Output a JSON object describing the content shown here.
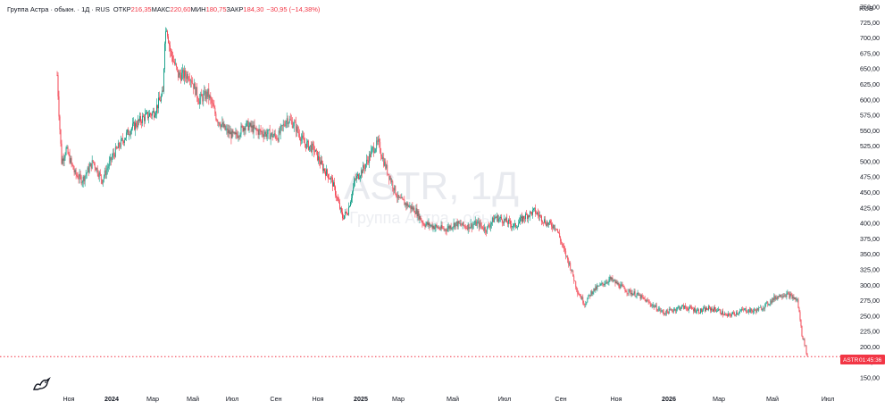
{
  "header": {
    "symbol": "Группа Астра · обыкн. · 1Д · RUS",
    "open_label": "ОТКР",
    "open_value": "216,35",
    "high_label": "МАКС",
    "high_value": "220,60",
    "low_label": "МИН",
    "low_value": "180,75",
    "close_label": "ЗАКР",
    "close_value": "184,30",
    "change": "−30,95 (−14,38%)"
  },
  "watermark": {
    "ticker": "ASTR, 1Д",
    "name": "Группа Астра · обыкн."
  },
  "price_tag": {
    "ticker": "ASTR",
    "timer": "01:45:36"
  },
  "colors": {
    "up": "#089981",
    "down": "#f23645",
    "grid": "#f0f3fa"
  },
  "chart_data": {
    "type": "candlestick",
    "currency": "RUB",
    "y_ticks": [
      750,
      725,
      700,
      675,
      650,
      625,
      600,
      575,
      550,
      525,
      500,
      475,
      450,
      425,
      400,
      375,
      350,
      325,
      300,
      275,
      250,
      225,
      200,
      175,
      150
    ],
    "y_tick_labels": [
      "750,00",
      "725,00",
      "700,00",
      "675,00",
      "650,00",
      "625,00",
      "600,00",
      "575,00",
      "550,00",
      "525,00",
      "500,00",
      "475,00",
      "450,00",
      "425,00",
      "400,00",
      "375,00",
      "350,00",
      "325,00",
      "300,00",
      "275,00",
      "250,00",
      "225,00",
      "200,00",
      "175,00",
      "150,00"
    ],
    "ylim": [
      140,
      765
    ],
    "x_ticks": [
      "Ноя",
      "2024",
      "Мар",
      "Май",
      "Июл",
      "Сен",
      "Ноя",
      "2025",
      "Мар",
      "Май",
      "Июл",
      "Сен",
      "Ноя",
      "2026",
      "Мар",
      "Май",
      "Июл"
    ],
    "x_tick_bold": [
      false,
      true,
      false,
      false,
      false,
      false,
      false,
      true,
      false,
      false,
      false,
      false,
      false,
      true,
      false,
      false,
      false
    ],
    "last_price": 184.3,
    "path": [
      [
        0,
        640
      ],
      [
        2,
        580
      ],
      [
        5,
        500
      ],
      [
        10,
        520
      ],
      [
        20,
        480
      ],
      [
        28,
        470
      ],
      [
        40,
        500
      ],
      [
        50,
        470
      ],
      [
        62,
        510
      ],
      [
        80,
        550
      ],
      [
        95,
        570
      ],
      [
        108,
        580
      ],
      [
        118,
        610
      ],
      [
        120,
        700
      ],
      [
        122,
        720
      ],
      [
        126,
        680
      ],
      [
        135,
        640
      ],
      [
        148,
        640
      ],
      [
        158,
        600
      ],
      [
        168,
        610
      ],
      [
        178,
        570
      ],
      [
        188,
        550
      ],
      [
        198,
        540
      ],
      [
        210,
        560
      ],
      [
        222,
        550
      ],
      [
        234,
        545
      ],
      [
        246,
        540
      ],
      [
        256,
        570
      ],
      [
        264,
        560
      ],
      [
        275,
        530
      ],
      [
        286,
        520
      ],
      [
        296,
        490
      ],
      [
        306,
        470
      ],
      [
        312,
        440
      ],
      [
        318,
        410
      ],
      [
        324,
        420
      ],
      [
        332,
        470
      ],
      [
        342,
        490
      ],
      [
        352,
        520
      ],
      [
        358,
        530
      ],
      [
        364,
        500
      ],
      [
        372,
        470
      ],
      [
        380,
        440
      ],
      [
        390,
        430
      ],
      [
        400,
        420
      ],
      [
        408,
        400
      ],
      [
        420,
        395
      ],
      [
        432,
        390
      ],
      [
        444,
        400
      ],
      [
        456,
        395
      ],
      [
        468,
        400
      ],
      [
        478,
        390
      ],
      [
        488,
        410
      ],
      [
        498,
        405
      ],
      [
        510,
        395
      ],
      [
        520,
        410
      ],
      [
        532,
        420
      ],
      [
        546,
        400
      ],
      [
        556,
        395
      ],
      [
        564,
        360
      ],
      [
        572,
        330
      ],
      [
        580,
        290
      ],
      [
        588,
        270
      ],
      [
        596,
        290
      ],
      [
        606,
        300
      ],
      [
        616,
        310
      ],
      [
        626,
        300
      ],
      [
        636,
        290
      ],
      [
        646,
        285
      ],
      [
        656,
        275
      ],
      [
        666,
        265
      ],
      [
        676,
        255
      ],
      [
        686,
        260
      ],
      [
        696,
        265
      ],
      [
        706,
        262
      ],
      [
        716,
        258
      ],
      [
        726,
        262
      ],
      [
        736,
        260
      ],
      [
        746,
        250
      ],
      [
        756,
        255
      ],
      [
        766,
        260
      ],
      [
        776,
        258
      ],
      [
        784,
        262
      ],
      [
        792,
        270
      ],
      [
        800,
        280
      ],
      [
        808,
        285
      ],
      [
        814,
        285
      ],
      [
        820,
        280
      ],
      [
        825,
        275
      ],
      [
        828,
        245
      ],
      [
        830,
        220
      ],
      [
        834,
        200
      ],
      [
        836,
        184.3
      ]
    ],
    "x_range": [
      0,
      836
    ]
  }
}
